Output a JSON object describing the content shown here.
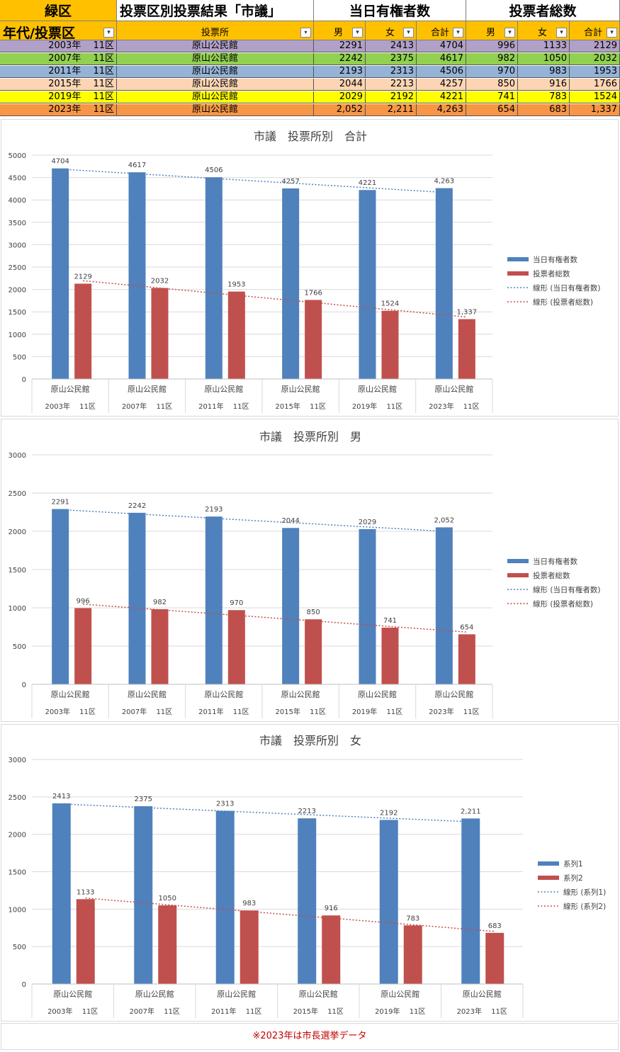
{
  "header": {
    "ward": "緑区",
    "table_title": "投票区別投票結果「市議」",
    "eligible_title": "当日有権者数",
    "voters_title": "投票者総数",
    "col_year": "年代/投票区",
    "col_place": "投票所",
    "col_male": "男",
    "col_female": "女",
    "col_total": "合計",
    "col_male2": "男",
    "col_female2": "女",
    "col_total2": "合計",
    "filter_icon": "dropdown-arrow-icon",
    "active_filter_icon": "filter-icon"
  },
  "rows": [
    {
      "year": "2003年　 11区",
      "place": "原山公民館",
      "e_m": "2291",
      "e_f": "2413",
      "e_t": "4704",
      "v_m": "996",
      "v_f": "1133",
      "v_t": "2129",
      "color": "#b1a0c7"
    },
    {
      "year": "2007年　 11区",
      "place": "原山公民館",
      "e_m": "2242",
      "e_f": "2375",
      "e_t": "4617",
      "v_m": "982",
      "v_f": "1050",
      "v_t": "2032",
      "color": "#92d050"
    },
    {
      "year": "2011年　 11区",
      "place": "原山公民館",
      "e_m": "2193",
      "e_f": "2313",
      "e_t": "4506",
      "v_m": "970",
      "v_f": "983",
      "v_t": "1953",
      "color": "#95b3d7"
    },
    {
      "year": "2015年　 11区",
      "place": "原山公民館",
      "e_m": "2044",
      "e_f": "2213",
      "e_t": "4257",
      "v_m": "850",
      "v_f": "916",
      "v_t": "1766",
      "color": "#fcd5b4"
    },
    {
      "year": "2019年　 11区",
      "place": "原山公民館",
      "e_m": "2029",
      "e_f": "2192",
      "e_t": "4221",
      "v_m": "741",
      "v_f": "783",
      "v_t": "1524",
      "color": "#ffff00"
    },
    {
      "year": "2023年　 11区",
      "place": "原山公民館",
      "e_m": "2,052",
      "e_f": "2,211",
      "e_t": "4,263",
      "v_m": "654",
      "v_f": "683",
      "v_t": "1,337",
      "color": "#f79646"
    }
  ],
  "chart_data": [
    {
      "type": "bar",
      "title": "市議　投票所別　合計",
      "categories": [
        "原山公民館",
        "原山公民館",
        "原山公民館",
        "原山公民館",
        "原山公民館",
        "原山公民館"
      ],
      "category_groups": [
        "2003年　 11区",
        "2007年　 11区",
        "2011年　 11区",
        "2015年　 11区",
        "2019年　 11区",
        "2023年　 11区"
      ],
      "series": [
        {
          "name": "当日有権者数",
          "values": [
            4704,
            4617,
            4506,
            4257,
            4221,
            4263
          ],
          "labels": [
            "4704",
            "4617",
            "4506",
            "4257",
            "4221",
            "4,263"
          ],
          "color": "#4f81bd"
        },
        {
          "name": "投票者総数",
          "values": [
            2129,
            2032,
            1953,
            1766,
            1524,
            1337
          ],
          "labels": [
            "2129",
            "2032",
            "1953",
            "1766",
            "1524",
            "1,337"
          ],
          "color": "#c0504d"
        }
      ],
      "trendlines": [
        "線形 (当日有権者数)",
        "線形 (投票者総数)"
      ],
      "ylim": [
        0,
        5000
      ],
      "yticks": [
        "0",
        "500",
        "1000",
        "1500",
        "2000",
        "2500",
        "3000",
        "3500",
        "4000",
        "4500",
        "5000"
      ],
      "grid": true,
      "legend": "right"
    },
    {
      "type": "bar",
      "title": "市議　投票所別　男",
      "categories": [
        "原山公民館",
        "原山公民館",
        "原山公民館",
        "原山公民館",
        "原山公民館",
        "原山公民館"
      ],
      "category_groups": [
        "2003年　 11区",
        "2007年　 11区",
        "2011年　 11区",
        "2015年　 11区",
        "2019年　 11区",
        "2023年　 11区"
      ],
      "series": [
        {
          "name": "当日有権者数",
          "values": [
            2291,
            2242,
            2193,
            2044,
            2029,
            2052
          ],
          "labels": [
            "2291",
            "2242",
            "2193",
            "2044",
            "2029",
            "2,052"
          ],
          "color": "#4f81bd"
        },
        {
          "name": "投票者総数",
          "values": [
            996,
            982,
            970,
            850,
            741,
            654
          ],
          "labels": [
            "996",
            "982",
            "970",
            "850",
            "741",
            "654"
          ],
          "color": "#c0504d"
        }
      ],
      "trendlines": [
        "線形 (当日有権者数)",
        "線形 (投票者総数)"
      ],
      "ylim": [
        0,
        3000
      ],
      "yticks": [
        "0",
        "500",
        "1000",
        "1500",
        "2000",
        "2500",
        "3000"
      ],
      "grid": true,
      "legend": "right"
    },
    {
      "type": "bar",
      "title": "市議　投票所別　女",
      "categories": [
        "原山公民館",
        "原山公民館",
        "原山公民館",
        "原山公民館",
        "原山公民館",
        "原山公民館"
      ],
      "category_groups": [
        "2003年　 11区",
        "2007年　 11区",
        "2011年　 11区",
        "2015年　 11区",
        "2019年　 11区",
        "2023年　 11区"
      ],
      "series": [
        {
          "name": "系列1",
          "values": [
            2413,
            2375,
            2313,
            2213,
            2192,
            2211
          ],
          "labels": [
            "2413",
            "2375",
            "2313",
            "2213",
            "2192",
            "2,211"
          ],
          "color": "#4f81bd"
        },
        {
          "name": "系列2",
          "values": [
            1133,
            1050,
            983,
            916,
            783,
            683
          ],
          "labels": [
            "1133",
            "1050",
            "983",
            "916",
            "783",
            "683"
          ],
          "color": "#c0504d"
        }
      ],
      "trendlines": [
        "線形 (系列1)",
        "線形 (系列2)"
      ],
      "ylim": [
        0,
        3000
      ],
      "yticks": [
        "0",
        "500",
        "1000",
        "1500",
        "2000",
        "2500",
        "3000"
      ],
      "grid": true,
      "legend": "right"
    }
  ],
  "note": "※2023年は市長選挙データ"
}
